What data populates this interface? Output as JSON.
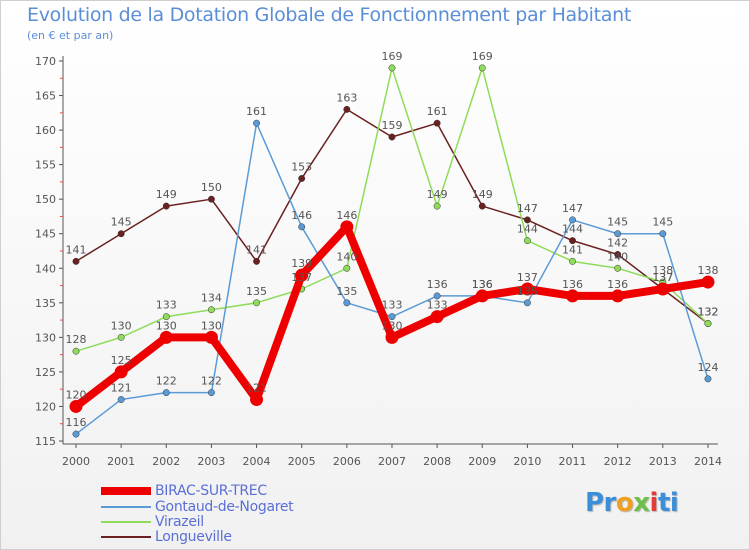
{
  "chart_data": {
    "type": "line",
    "title": "Evolution de la Dotation Globale de Fonctionnement par Habitant",
    "subtitle": "(en € et par an)",
    "xlabel": "",
    "ylabel": "",
    "ylim": [
      115,
      170
    ],
    "yticks": [
      115,
      120,
      125,
      130,
      135,
      140,
      145,
      150,
      155,
      160,
      165,
      170
    ],
    "grid": false,
    "legend_position": "bottom-left",
    "x": [
      "2000",
      "2001",
      "2002",
      "2003",
      "2004",
      "2005",
      "2006",
      "2007",
      "2008",
      "2009",
      "2010",
      "2011",
      "2012",
      "2013",
      "2014"
    ],
    "series": [
      {
        "name": "Longueville",
        "color": "#6b2020",
        "values": [
          141,
          145,
          149,
          150,
          141,
          153,
          163,
          159,
          161,
          149,
          147,
          144,
          142,
          137,
          132
        ]
      },
      {
        "name": "Virazeil",
        "color": "#8edc5a",
        "values": [
          128,
          130,
          133,
          134,
          135,
          137,
          140,
          169,
          149,
          169,
          144,
          141,
          140,
          138,
          132
        ]
      },
      {
        "name": "Gontaud-de-Nogaret",
        "color": "#5b9bd5",
        "values": [
          116,
          121,
          122,
          122,
          161,
          146,
          135,
          133,
          136,
          136,
          135,
          147,
          145,
          145,
          124
        ]
      },
      {
        "name": "BIRAC-SUR-TREC",
        "color": "#ee0000",
        "values": [
          120,
          125,
          130,
          130,
          121,
          139,
          146,
          130,
          133,
          136,
          137,
          136,
          136,
          137,
          138
        ]
      }
    ],
    "label_values": {
      "BIRAC-SUR-TREC": [
        "120",
        "125",
        "130",
        "130",
        "121",
        "139",
        "146",
        "130",
        "133",
        "136",
        "137",
        "136",
        "136",
        "137",
        "138"
      ],
      "Gontaud-de-Nogaret": [
        "116",
        "121",
        "122",
        "122",
        "161",
        "146",
        "135",
        "133",
        "136",
        "136",
        "135",
        "147",
        "145",
        "145",
        "124"
      ],
      "Virazeil": [
        "128",
        "130",
        "133",
        "134",
        "135",
        "137",
        "140",
        "169",
        "149",
        "169",
        "144",
        "141",
        "140",
        "138",
        "132"
      ],
      "Longueville": [
        "141",
        "145",
        "149",
        "150",
        "141",
        "153",
        "163",
        "159",
        "161",
        "149",
        "147",
        "144",
        "142",
        "137",
        "132"
      ]
    }
  },
  "legend": {
    "items": [
      {
        "label": "BIRAC-SUR-TREC",
        "color": "#ee0000"
      },
      {
        "label": "Gontaud-de-Nogaret",
        "color": "#5b9bd5"
      },
      {
        "label": "Virazeil",
        "color": "#8edc5a"
      },
      {
        "label": "Longueville",
        "color": "#6b2020"
      }
    ]
  },
  "brand": {
    "p1": "Pr",
    "p2": "o",
    "p3": "x",
    "p4": "i",
    "p5": "ti"
  }
}
